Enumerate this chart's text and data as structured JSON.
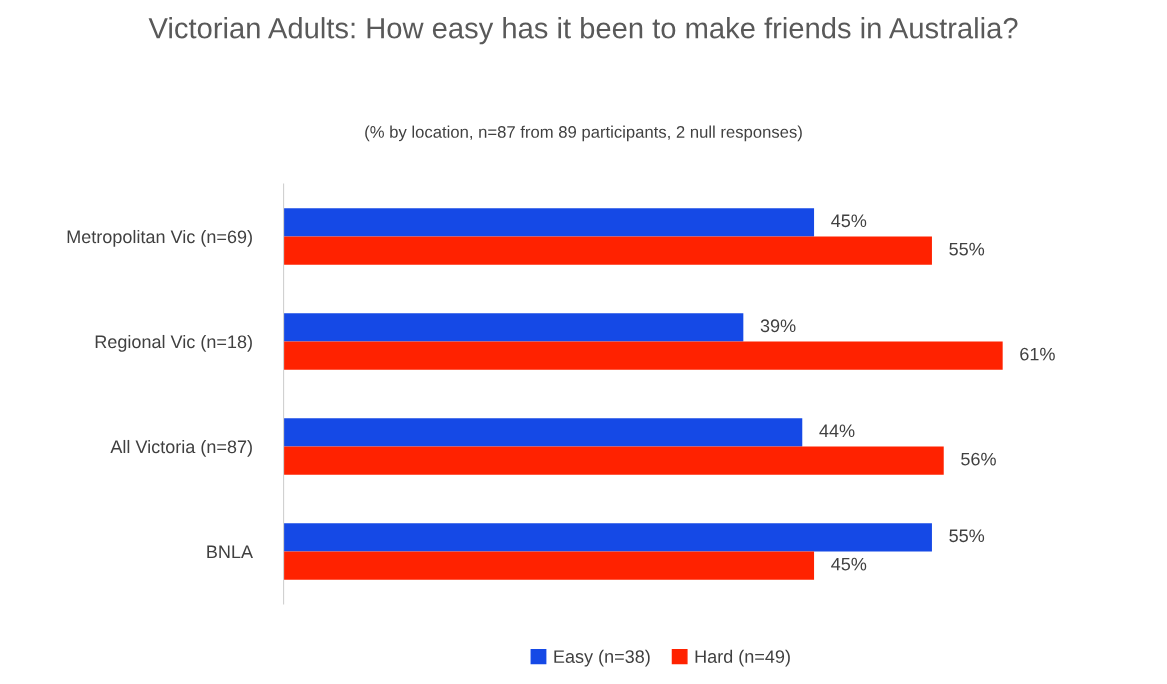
{
  "chart_data": {
    "type": "bar",
    "orientation": "horizontal",
    "title": "Victorian Adults: How easy has it been to make friends in Australia?",
    "subtitle": "(% by location, n=87 from 89 participants, 2 null responses)",
    "categories": [
      "Metropolitan Vic (n=69)",
      "Regional Vic (n=18)",
      "All Victoria (n=87)",
      "BNLA"
    ],
    "series": [
      {
        "name": "Easy (n=38)",
        "color": "#1549e6",
        "values": [
          45,
          39,
          44,
          55
        ],
        "value_labels": [
          "45%",
          "39%",
          "44%",
          "55%"
        ]
      },
      {
        "name": "Hard (n=49)",
        "color": "#ff2200",
        "values": [
          55,
          61,
          56,
          45
        ],
        "value_labels": [
          "55%",
          "61%",
          "56%",
          "45%"
        ]
      }
    ],
    "tick_labels": "y",
    "grid": false,
    "legend": "bottom"
  }
}
